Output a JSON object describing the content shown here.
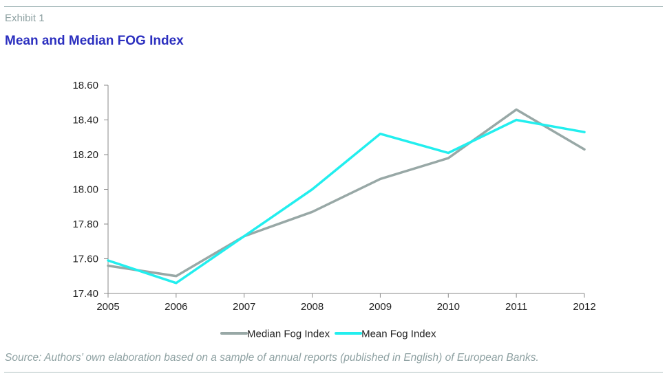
{
  "header": {
    "exhibit": "Exhibit 1",
    "title": "Mean and Median FOG Index"
  },
  "footer": {
    "source": "Source: Authors’ own elaboration based on a sample of annual reports (published in English) of European Banks."
  },
  "chart_data": {
    "type": "line",
    "title": "Mean and Median FOG Index",
    "xlabel": "",
    "ylabel": "",
    "x": [
      "2005",
      "2006",
      "2007",
      "2008",
      "2009",
      "2010",
      "2011",
      "2012"
    ],
    "ylim": [
      17.4,
      18.6
    ],
    "yticks": [
      "17.40",
      "17.60",
      "17.80",
      "18.00",
      "18.20",
      "18.40",
      "18.60"
    ],
    "grid": false,
    "legend_position": "bottom",
    "series": [
      {
        "name": "Median Fog Index",
        "color": "#98a8a6",
        "values": [
          17.56,
          17.5,
          17.73,
          17.87,
          18.06,
          18.18,
          18.46,
          18.23
        ]
      },
      {
        "name": "Mean Fog Index",
        "color": "#22eeee",
        "values": [
          17.59,
          17.46,
          17.73,
          18.0,
          18.32,
          18.21,
          18.4,
          18.33
        ]
      }
    ]
  }
}
